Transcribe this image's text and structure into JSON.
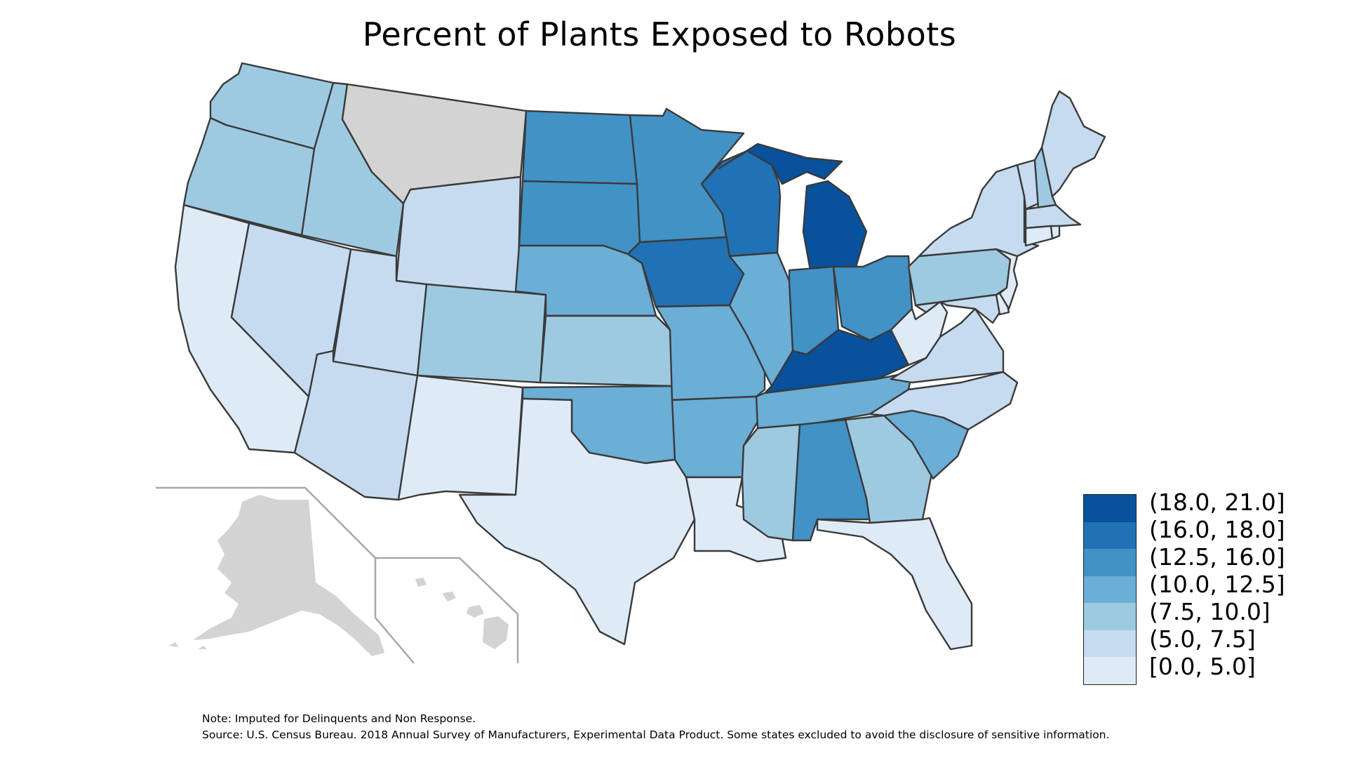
{
  "title": "Percent of Plants Exposed to Robots",
  "legend": [
    {
      "label": "(18.0, 21.0]",
      "color": "#08519c"
    },
    {
      "label": "(16.0, 18.0]",
      "color": "#2171b5"
    },
    {
      "label": "(12.5, 16.0]",
      "color": "#4292c6"
    },
    {
      "label": "(10.0, 12.5]",
      "color": "#6baed6"
    },
    {
      "label": "(7.5, 10.0]",
      "color": "#9ecae1"
    },
    {
      "label": "(5.0, 7.5]",
      "color": "#c6dbef"
    },
    {
      "label": "[0.0, 5.0]",
      "color": "#deebf7"
    }
  ],
  "colors": {
    "no_data": "#d3d3d3",
    "border": "#3a3a3a",
    "inset_frame": "#a8a8a8"
  },
  "notes": {
    "note": "Note: Imputed for Delinquents and Non Response.",
    "source": "Source: U.S. Census Bureau. 2018 Annual Survey of Manufacturers, Experimental Data Product. Some states excluded to avoid the disclosure of sensitive information."
  },
  "chart_data": {
    "type": "choropleth",
    "title": "Percent of Plants Exposed to Robots",
    "bins": [
      "[0.0, 5.0]",
      "(5.0, 7.5]",
      "(7.5, 10.0]",
      "(10.0, 12.5]",
      "(12.5, 16.0]",
      "(16.0, 18.0]",
      "(18.0, 21.0]"
    ],
    "legend_position": "bottom-right",
    "states": [
      {
        "state": "WA",
        "bin": "(7.5, 10.0]"
      },
      {
        "state": "OR",
        "bin": "(7.5, 10.0]"
      },
      {
        "state": "CA",
        "bin": "[0.0, 5.0]"
      },
      {
        "state": "ID",
        "bin": "(7.5, 10.0]"
      },
      {
        "state": "NV",
        "bin": "(5.0, 7.5]"
      },
      {
        "state": "MT",
        "bin": "excluded"
      },
      {
        "state": "WY",
        "bin": "(5.0, 7.5]"
      },
      {
        "state": "UT",
        "bin": "(5.0, 7.5]"
      },
      {
        "state": "AZ",
        "bin": "(5.0, 7.5]"
      },
      {
        "state": "CO",
        "bin": "(7.5, 10.0]"
      },
      {
        "state": "NM",
        "bin": "[0.0, 5.0]"
      },
      {
        "state": "ND",
        "bin": "(12.5, 16.0]"
      },
      {
        "state": "SD",
        "bin": "(12.5, 16.0]"
      },
      {
        "state": "NE",
        "bin": "(10.0, 12.5]"
      },
      {
        "state": "KS",
        "bin": "(7.5, 10.0]"
      },
      {
        "state": "OK",
        "bin": "(10.0, 12.5]"
      },
      {
        "state": "TX",
        "bin": "[0.0, 5.0]"
      },
      {
        "state": "MN",
        "bin": "(12.5, 16.0]"
      },
      {
        "state": "IA",
        "bin": "(16.0, 18.0]"
      },
      {
        "state": "MO",
        "bin": "(10.0, 12.5]"
      },
      {
        "state": "AR",
        "bin": "(10.0, 12.5]"
      },
      {
        "state": "LA",
        "bin": "[0.0, 5.0]"
      },
      {
        "state": "WI",
        "bin": "(16.0, 18.0]"
      },
      {
        "state": "MI",
        "bin": "(18.0, 21.0]"
      },
      {
        "state": "IL",
        "bin": "(10.0, 12.5]"
      },
      {
        "state": "IN",
        "bin": "(12.5, 16.0]"
      },
      {
        "state": "OH",
        "bin": "(12.5, 16.0]"
      },
      {
        "state": "KY",
        "bin": "(18.0, 21.0]"
      },
      {
        "state": "TN",
        "bin": "(10.0, 12.5]"
      },
      {
        "state": "MS",
        "bin": "(7.5, 10.0]"
      },
      {
        "state": "AL",
        "bin": "(12.5, 16.0]"
      },
      {
        "state": "GA",
        "bin": "(7.5, 10.0]"
      },
      {
        "state": "FL",
        "bin": "[0.0, 5.0]"
      },
      {
        "state": "SC",
        "bin": "(10.0, 12.5]"
      },
      {
        "state": "NC",
        "bin": "(5.0, 7.5]"
      },
      {
        "state": "VA",
        "bin": "(5.0, 7.5]"
      },
      {
        "state": "WV",
        "bin": "[0.0, 5.0]"
      },
      {
        "state": "PA",
        "bin": "(7.5, 10.0]"
      },
      {
        "state": "NY",
        "bin": "(5.0, 7.5]"
      },
      {
        "state": "VT",
        "bin": "(5.0, 7.5]"
      },
      {
        "state": "NH",
        "bin": "(7.5, 10.0]"
      },
      {
        "state": "ME",
        "bin": "(5.0, 7.5]"
      },
      {
        "state": "MA",
        "bin": "(5.0, 7.5]"
      },
      {
        "state": "CT",
        "bin": "[0.0, 5.0]"
      },
      {
        "state": "RI",
        "bin": "[0.0, 5.0]"
      },
      {
        "state": "NJ",
        "bin": "[0.0, 5.0]"
      },
      {
        "state": "DE",
        "bin": "[0.0, 5.0]"
      },
      {
        "state": "MD",
        "bin": "(5.0, 7.5]"
      },
      {
        "state": "AK",
        "bin": "excluded"
      },
      {
        "state": "HI",
        "bin": "excluded"
      }
    ]
  }
}
